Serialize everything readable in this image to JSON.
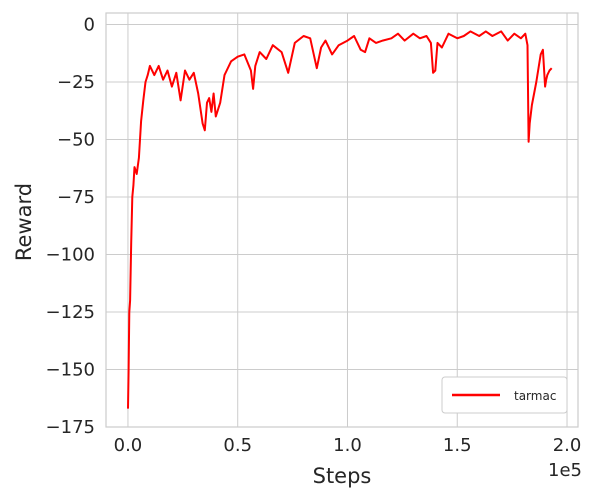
{
  "colors": {
    "series": "#ff0000",
    "grid": "#cccccc",
    "text": "#262626",
    "background": "#ffffff"
  },
  "chart_data": {
    "type": "line",
    "title": "",
    "xlabel": "Steps",
    "ylabel": "Reward",
    "x_offset_label": "1e5",
    "xlim": [
      -0.1,
      2.05
    ],
    "ylim": [
      -175,
      5
    ],
    "xticks": [
      0.0,
      0.5,
      1.0,
      1.5,
      2.0
    ],
    "xtick_labels": [
      "0.0",
      "0.5",
      "1.0",
      "1.5",
      "2.0"
    ],
    "yticks": [
      0,
      -25,
      -50,
      -75,
      -100,
      -125,
      -150,
      -175
    ],
    "ytick_labels": [
      "0",
      "−25",
      "−50",
      "−75",
      "−100",
      "−125",
      "−150",
      "−175"
    ],
    "grid": true,
    "legend_position": "bottom-right",
    "series": [
      {
        "name": "tarmac",
        "color": "#ff0000",
        "x": [
          0.0,
          0.003,
          0.006,
          0.01,
          0.015,
          0.02,
          0.025,
          0.03,
          0.04,
          0.05,
          0.06,
          0.07,
          0.08,
          0.09,
          0.1,
          0.12,
          0.14,
          0.16,
          0.18,
          0.2,
          0.22,
          0.24,
          0.26,
          0.28,
          0.3,
          0.32,
          0.34,
          0.35,
          0.36,
          0.37,
          0.38,
          0.39,
          0.4,
          0.42,
          0.44,
          0.45,
          0.47,
          0.5,
          0.53,
          0.56,
          0.57,
          0.58,
          0.6,
          0.63,
          0.66,
          0.7,
          0.73,
          0.76,
          0.8,
          0.83,
          0.86,
          0.88,
          0.9,
          0.93,
          0.96,
          1.0,
          1.03,
          1.06,
          1.08,
          1.1,
          1.13,
          1.16,
          1.2,
          1.23,
          1.26,
          1.3,
          1.33,
          1.36,
          1.38,
          1.39,
          1.4,
          1.41,
          1.43,
          1.46,
          1.5,
          1.53,
          1.56,
          1.6,
          1.63,
          1.66,
          1.7,
          1.73,
          1.76,
          1.79,
          1.81,
          1.82,
          1.825,
          1.83,
          1.84,
          1.86,
          1.88,
          1.89,
          1.9,
          1.905,
          1.91,
          1.92,
          1.93
        ],
        "y": [
          -167,
          -150,
          -125,
          -120,
          -95,
          -75,
          -70,
          -62,
          -65,
          -58,
          -42,
          -33,
          -25,
          -22,
          -18,
          -22,
          -18,
          -24,
          -20,
          -27,
          -21,
          -33,
          -20,
          -24,
          -21,
          -30,
          -43,
          -46,
          -34,
          -32,
          -38,
          -30,
          -40,
          -34,
          -22,
          -20,
          -16,
          -14,
          -13,
          -20,
          -28,
          -18,
          -12,
          -15,
          -9,
          -12,
          -21,
          -8,
          -5,
          -6,
          -19,
          -10,
          -7,
          -13,
          -9,
          -7,
          -5,
          -11,
          -12,
          -6,
          -8,
          -7,
          -6,
          -4,
          -7,
          -4,
          -6,
          -5,
          -8,
          -21,
          -20,
          -8,
          -10,
          -4,
          -6,
          -5,
          -3,
          -5,
          -3,
          -5,
          -3,
          -7,
          -4,
          -6,
          -4,
          -9,
          -51,
          -43,
          -35,
          -25,
          -13,
          -11,
          -27,
          -24,
          -22,
          -20,
          -19
        ]
      }
    ]
  }
}
